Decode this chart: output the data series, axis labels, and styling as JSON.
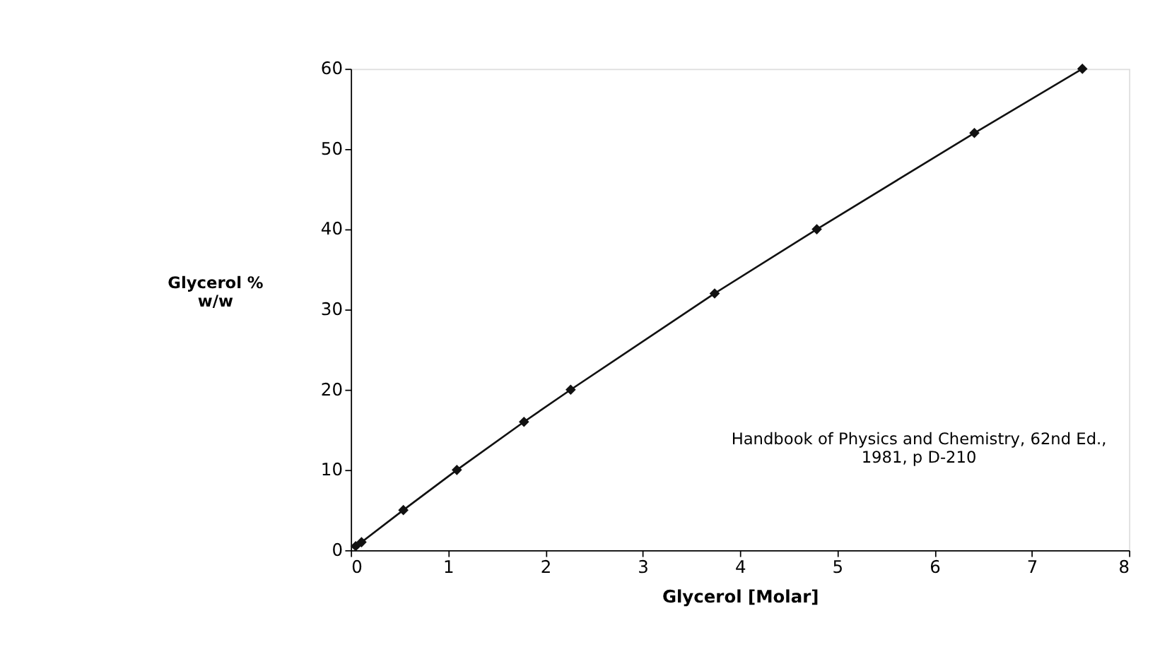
{
  "chart_data": {
    "type": "line",
    "xlabel": "Glycerol [Molar]",
    "ylabel": "Glycerol %\nw/w",
    "x": [
      0.05,
      0.11,
      0.54,
      1.09,
      1.78,
      2.26,
      3.74,
      4.79,
      6.41,
      7.52
    ],
    "series": [
      {
        "color": "#111111",
        "values": [
          0.5,
          1,
          5,
          10,
          16,
          20,
          32,
          40,
          52,
          60
        ]
      }
    ],
    "xlim": [
      0,
      8
    ],
    "xticks": [
      0,
      1,
      2,
      3,
      4,
      5,
      6,
      7,
      8
    ],
    "ylim": [
      0,
      60
    ],
    "yticks": [
      0,
      10,
      20,
      30,
      40,
      50,
      60
    ],
    "marker": "diamond",
    "line_style": "solid",
    "grid": false,
    "legend": false,
    "annotations": [
      "Handbook of Physics and Chemistry, 62nd Ed.,\n1981, p D-210"
    ]
  }
}
